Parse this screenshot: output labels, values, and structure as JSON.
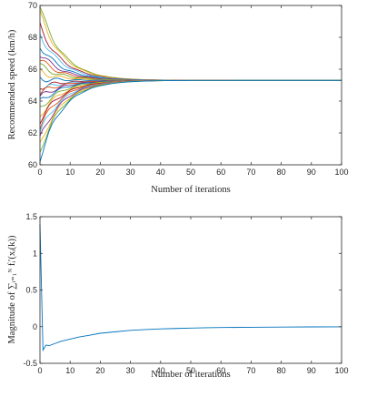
{
  "chart_data": [
    {
      "type": "line",
      "title": "",
      "xlabel": "Number of iterations",
      "ylabel": "Recommended speed (km/h)",
      "xlim": [
        0,
        100
      ],
      "ylim": [
        60,
        70
      ],
      "xticks": [
        0,
        10,
        20,
        30,
        40,
        50,
        60,
        70,
        80,
        90,
        100
      ],
      "yticks": [
        60,
        62,
        64,
        66,
        68,
        70
      ],
      "grid": false,
      "legend": "none",
      "converged_value": 65.3,
      "approx_time_constant_iterations": 7.5,
      "series": [
        {
          "start": 69.9,
          "color": "#77ac30"
        },
        {
          "start": 69.5,
          "color": "#edb120"
        },
        {
          "start": 68.7,
          "color": "#a2142f"
        },
        {
          "start": 68.2,
          "color": "#4dbeee"
        },
        {
          "start": 67.5,
          "color": "#0072bd"
        },
        {
          "start": 67.0,
          "color": "#7e2f8e"
        },
        {
          "start": 66.6,
          "color": "#d95319"
        },
        {
          "start": 66.2,
          "color": "#77ac30"
        },
        {
          "start": 65.8,
          "color": "#edb120"
        },
        {
          "start": 65.4,
          "color": "#0072bd"
        },
        {
          "start": 64.9,
          "color": "#a2142f"
        },
        {
          "start": 64.7,
          "color": "#4dbeee"
        },
        {
          "start": 64.5,
          "color": "#d95319"
        },
        {
          "start": 64.2,
          "color": "#7e2f8e"
        },
        {
          "start": 63.9,
          "color": "#0072bd"
        },
        {
          "start": 63.5,
          "color": "#77ac30"
        },
        {
          "start": 63.1,
          "color": "#edb120"
        },
        {
          "start": 62.8,
          "color": "#a2142f"
        },
        {
          "start": 62.4,
          "color": "#d95319"
        },
        {
          "start": 62.0,
          "color": "#4dbeee"
        },
        {
          "start": 61.6,
          "color": "#7e2f8e"
        },
        {
          "start": 61.2,
          "color": "#edb120"
        },
        {
          "start": 60.8,
          "color": "#77ac30"
        },
        {
          "start": 60.4,
          "color": "#0072bd"
        }
      ]
    },
    {
      "type": "line",
      "title": "",
      "xlabel": "Number of iterations",
      "ylabel": "Magnitude of ∑ᵢ₌₁ᴺ fᵢ′(xᵢ(k))",
      "xlim": [
        0,
        100
      ],
      "ylim": [
        -0.5,
        1.5
      ],
      "xticks": [
        0,
        10,
        20,
        30,
        40,
        50,
        60,
        70,
        80,
        90,
        100
      ],
      "yticks": [
        -0.5,
        0,
        0.5,
        1,
        1.5
      ],
      "ytick_labels": [
        "-0.5",
        "0",
        "0.5",
        "1",
        "1.5"
      ],
      "grid": false,
      "legend": "none",
      "series": [
        {
          "color": "#0072bd",
          "x": [
            0,
            1,
            2,
            3,
            5,
            7,
            10,
            13,
            16,
            20,
            25,
            30,
            35,
            40,
            45,
            50,
            55,
            60,
            70,
            80,
            90,
            100
          ],
          "y": [
            1.4,
            -0.32,
            -0.25,
            -0.26,
            -0.23,
            -0.2,
            -0.17,
            -0.14,
            -0.12,
            -0.09,
            -0.07,
            -0.05,
            -0.04,
            -0.03,
            -0.025,
            -0.02,
            -0.015,
            -0.012,
            -0.008,
            -0.005,
            -0.003,
            -0.002
          ]
        }
      ]
    }
  ]
}
